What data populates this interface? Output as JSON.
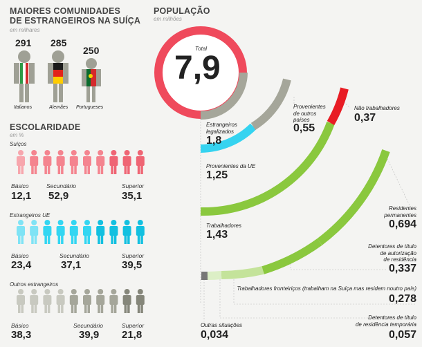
{
  "left": {
    "title": "MAIORES COMUNIDADES DE ESTRANGEIROS NA SUÍÇA",
    "title_line1": "MAIORES COMUNIDADES",
    "title_line2": "DE ESTRANGEIROS NA SUÍÇA",
    "unit": "em milhares"
  },
  "communities": [
    {
      "value": "291",
      "label": "Italianos"
    },
    {
      "value": "285",
      "label": "Alemães"
    },
    {
      "value": "250",
      "label": "Portugueses"
    }
  ],
  "edu": {
    "title": "ESCOLARIDADE",
    "unit": "em %",
    "groups": [
      {
        "name": "Suíços",
        "labels": [
          "Básico",
          "Secundário",
          "Superior"
        ],
        "values": [
          "12,1",
          "52,9",
          "35,1"
        ]
      },
      {
        "name": "Estrangeiros UE",
        "labels": [
          "Básico",
          "Secundário",
          "Superior"
        ],
        "values": [
          "23,4",
          "37,1",
          "39,5"
        ]
      },
      {
        "name": "Outros estrangeiros",
        "labels": [
          "Básico",
          "Secundário",
          "Superior"
        ],
        "values": [
          "38,3",
          "39,9",
          "21,8"
        ]
      }
    ]
  },
  "pop": {
    "title": "POPULAÇÃO",
    "unit": "em milhões",
    "total_label": "Total",
    "total_value": "7,9"
  },
  "segments": [
    {
      "label_lines": [
        "Estrangeiros",
        "legalizados"
      ],
      "value": "1,8"
    },
    {
      "label_lines": [
        "Provenientes",
        "de outros",
        "países"
      ],
      "value": "0,55"
    },
    {
      "label_lines": [
        "Não trabalhadores"
      ],
      "value": "0,37"
    },
    {
      "label_lines": [
        "Provenientes da UE"
      ],
      "value": "1,25"
    },
    {
      "label_lines": [
        "Trabalhadores"
      ],
      "value": "1,43"
    },
    {
      "label_lines": [
        "Residentes",
        "permanentes"
      ],
      "value": "0,694"
    },
    {
      "label_lines": [
        "Detentores de título",
        "de autorização",
        "de residência"
      ],
      "value": "0,337"
    },
    {
      "label_lines": [
        "Trabalhadores fronteiriços (trabalham na Suíça mas residem noutro país)"
      ],
      "value": "0,278"
    },
    {
      "label_lines": [
        "Outras situações"
      ],
      "value": "0,034"
    },
    {
      "label_lines": [
        "Detentores de título",
        "de residência temporária"
      ],
      "value": "0,057"
    }
  ],
  "colors": {
    "red": "#ef4a5c",
    "gray": "#a5a69a",
    "cyan": "#35d3f0",
    "green": "#8ac83e",
    "lightgreen": "#c4e39a",
    "darkred": "#e81c24",
    "swiss": "#f47f8a",
    "eu": "#33d6f2",
    "other": "#9fa095"
  },
  "chart_data": [
    {
      "type": "bar",
      "title": "MAIORES COMUNIDADES DE ESTRANGEIROS NA SUÍÇA",
      "unit": "em milhares",
      "categories": [
        "Italianos",
        "Alemães",
        "Portugueses"
      ],
      "values": [
        291,
        285,
        250
      ]
    },
    {
      "type": "bar",
      "title": "ESCOLARIDADE",
      "unit": "em %",
      "categories": [
        "Básico",
        "Secundário",
        "Superior"
      ],
      "series": [
        {
          "name": "Suíços",
          "values": [
            12.1,
            52.9,
            35.1
          ]
        },
        {
          "name": "Estrangeiros UE",
          "values": [
            23.4,
            37.1,
            39.5
          ]
        },
        {
          "name": "Outros estrangeiros",
          "values": [
            38.3,
            39.9,
            21.8
          ]
        }
      ]
    },
    {
      "type": "pie",
      "title": "POPULAÇÃO",
      "unit": "em milhões",
      "total": 7.9,
      "breakdown": [
        {
          "name": "Estrangeiros legalizados",
          "value": 1.8
        },
        {
          "name": "Provenientes de outros países",
          "value": 0.55
        },
        {
          "name": "Provenientes da UE",
          "value": 1.25
        },
        {
          "name": "Não trabalhadores",
          "value": 0.37
        },
        {
          "name": "Trabalhadores",
          "value": 1.43
        },
        {
          "name": "Residentes permanentes",
          "value": 0.694
        },
        {
          "name": "Detentores de título de autorização de residência",
          "value": 0.337
        },
        {
          "name": "Trabalhadores fronteiriços (trabalham na Suíça mas residem noutro país)",
          "value": 0.278
        },
        {
          "name": "Outras situações",
          "value": 0.034
        },
        {
          "name": "Detentores de título de residência temporária",
          "value": 0.057
        }
      ]
    }
  ]
}
